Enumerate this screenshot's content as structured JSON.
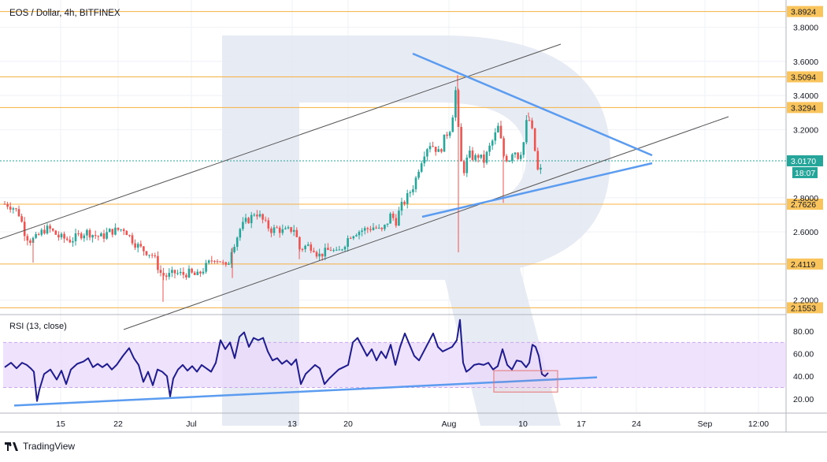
{
  "header": {
    "title": "EOS / Dollar, 4h, BITFINEX"
  },
  "footer": {
    "brand": "TradingView",
    "logo_icon": "tradingview-logo-icon"
  },
  "price_levels": [
    {
      "value": 3.8924,
      "label": "3.8924"
    },
    {
      "value": 3.5094,
      "label": "3.5094"
    },
    {
      "value": 3.3294,
      "label": "3.3294"
    },
    {
      "value": 2.7626,
      "label": "2.7626"
    },
    {
      "value": 2.4119,
      "label": "2.4119"
    },
    {
      "value": 2.1553,
      "label": "2.1553"
    }
  ],
  "current_price": {
    "value": 3.017,
    "label": "3.0170",
    "countdown": "18:07"
  },
  "colors": {
    "level_line": "#f5b041",
    "level_badge": "#f9c45c",
    "candle_up": "#26a69a",
    "candle_down": "#ef5350",
    "trend_blue": "#5b9bf0",
    "channel_line": "#555555",
    "current_badge": "#26a69a",
    "rsi_line": "#1e1b8f",
    "rsi_band": "#e9d8fb",
    "rsi_box": "#e57373",
    "watermark": "#e3e7f1"
  },
  "chart_data": [
    {
      "type": "candlestick",
      "title": "EOS / Dollar, 4h, BITFINEX",
      "xlabels": [
        "15",
        "22",
        "Jul",
        "13",
        "20",
        "Aug",
        "10",
        "17",
        "24",
        "Sep",
        "12:00"
      ],
      "ylabels": [
        "3.8000",
        "3.6000",
        "3.4000",
        "3.2000",
        "2.8000",
        "2.6000",
        "2.2000"
      ],
      "ylim": [
        2.12,
        3.96
      ],
      "price_path": [
        [
          0,
          2.77
        ],
        [
          10,
          2.76
        ],
        [
          18,
          2.74
        ],
        [
          25,
          2.7
        ],
        [
          31,
          2.6
        ],
        [
          37,
          2.55
        ],
        [
          45,
          2.56
        ],
        [
          55,
          2.61
        ],
        [
          62,
          2.62
        ],
        [
          75,
          2.57
        ],
        [
          90,
          2.55
        ],
        [
          100,
          2.58
        ],
        [
          110,
          2.6
        ],
        [
          120,
          2.58
        ],
        [
          130,
          2.57
        ],
        [
          138,
          2.6
        ],
        [
          148,
          2.61
        ],
        [
          158,
          2.62
        ],
        [
          165,
          2.57
        ],
        [
          172,
          2.53
        ],
        [
          180,
          2.5
        ],
        [
          188,
          2.48
        ],
        [
          195,
          2.46
        ],
        [
          200,
          2.4
        ],
        [
          205,
          2.35
        ],
        [
          212,
          2.34
        ],
        [
          222,
          2.36
        ],
        [
          232,
          2.35
        ],
        [
          240,
          2.36
        ],
        [
          250,
          2.34
        ],
        [
          258,
          2.38
        ],
        [
          264,
          2.41
        ],
        [
          272,
          2.45
        ],
        [
          280,
          2.43
        ],
        [
          288,
          2.38
        ],
        [
          294,
          2.5
        ],
        [
          300,
          2.56
        ],
        [
          305,
          2.62
        ],
        [
          312,
          2.66
        ],
        [
          318,
          2.68
        ],
        [
          324,
          2.72
        ],
        [
          330,
          2.69
        ],
        [
          338,
          2.64
        ],
        [
          345,
          2.61
        ],
        [
          352,
          2.62
        ],
        [
          360,
          2.6
        ],
        [
          367,
          2.61
        ],
        [
          374,
          2.62
        ],
        [
          380,
          2.5
        ],
        [
          390,
          2.52
        ],
        [
          398,
          2.51
        ],
        [
          404,
          2.46
        ],
        [
          412,
          2.48
        ],
        [
          420,
          2.5
        ],
        [
          428,
          2.47
        ],
        [
          436,
          2.52
        ],
        [
          444,
          2.58
        ],
        [
          452,
          2.6
        ],
        [
          460,
          2.61
        ],
        [
          468,
          2.62
        ],
        [
          476,
          2.63
        ],
        [
          484,
          2.6
        ],
        [
          490,
          2.64
        ],
        [
          496,
          2.7
        ],
        [
          503,
          2.66
        ],
        [
          508,
          2.74
        ],
        [
          514,
          2.78
        ],
        [
          520,
          2.83
        ],
        [
          526,
          2.88
        ],
        [
          532,
          2.98
        ],
        [
          538,
          3.06
        ],
        [
          545,
          3.12
        ],
        [
          551,
          3.1
        ],
        [
          558,
          3.06
        ],
        [
          565,
          3.16
        ],
        [
          571,
          3.2
        ],
        [
          576,
          3.32
        ],
        [
          580,
          3.5
        ],
        [
          583,
          3.04
        ],
        [
          589,
          2.96
        ],
        [
          595,
          3.06
        ],
        [
          602,
          3.03
        ],
        [
          608,
          3.05
        ],
        [
          614,
          3.01
        ],
        [
          620,
          3.08
        ],
        [
          627,
          3.15
        ],
        [
          633,
          3.22
        ],
        [
          639,
          3.05
        ],
        [
          646,
          3.02
        ],
        [
          652,
          3.09
        ],
        [
          658,
          3.04
        ],
        [
          664,
          3.1
        ],
        [
          670,
          3.29
        ],
        [
          676,
          3.18
        ],
        [
          680,
          3.05
        ],
        [
          684,
          2.92
        ],
        [
          688,
          2.99
        ],
        [
          691,
          3.02
        ]
      ],
      "wicks": [
        {
          "x": 42,
          "low": 2.42
        },
        {
          "x": 207,
          "low": 2.19
        },
        {
          "x": 295,
          "low": 2.33
        },
        {
          "x": 380,
          "low": 2.44
        },
        {
          "x": 582,
          "low": 2.48
        },
        {
          "x": 581,
          "high": 3.52
        },
        {
          "x": 639,
          "low": 2.77
        },
        {
          "x": 671,
          "high": 3.3
        }
      ]
    },
    {
      "type": "line",
      "title": "RSI (13, close)",
      "ylabels": [
        "80.00",
        "60.00",
        "40.00",
        "20.00"
      ],
      "ylim": [
        8,
        94
      ],
      "band": [
        30,
        70
      ],
      "rsi_path": [
        [
          0,
          48
        ],
        [
          8,
          52
        ],
        [
          15,
          47
        ],
        [
          22,
          52
        ],
        [
          28,
          50
        ],
        [
          33,
          47
        ],
        [
          37,
          44
        ],
        [
          41,
          18
        ],
        [
          44,
          28
        ],
        [
          50,
          42
        ],
        [
          58,
          46
        ],
        [
          66,
          37
        ],
        [
          72,
          45
        ],
        [
          78,
          33
        ],
        [
          84,
          46
        ],
        [
          92,
          51
        ],
        [
          100,
          53
        ],
        [
          106,
          56
        ],
        [
          112,
          48
        ],
        [
          118,
          51
        ],
        [
          124,
          48
        ],
        [
          130,
          51
        ],
        [
          136,
          46
        ],
        [
          142,
          50
        ],
        [
          150,
          58
        ],
        [
          158,
          65
        ],
        [
          164,
          56
        ],
        [
          170,
          50
        ],
        [
          176,
          35
        ],
        [
          182,
          44
        ],
        [
          188,
          32
        ],
        [
          194,
          46
        ],
        [
          200,
          44
        ],
        [
          206,
          40
        ],
        [
          210,
          22
        ],
        [
          214,
          38
        ],
        [
          220,
          46
        ],
        [
          226,
          50
        ],
        [
          232,
          45
        ],
        [
          238,
          49
        ],
        [
          244,
          44
        ],
        [
          250,
          50
        ],
        [
          256,
          47
        ],
        [
          262,
          44
        ],
        [
          268,
          52
        ],
        [
          274,
          72
        ],
        [
          280,
          64
        ],
        [
          286,
          70
        ],
        [
          292,
          56
        ],
        [
          298,
          75
        ],
        [
          304,
          79
        ],
        [
          310,
          66
        ],
        [
          316,
          74
        ],
        [
          322,
          72
        ],
        [
          328,
          74
        ],
        [
          334,
          62
        ],
        [
          340,
          54
        ],
        [
          346,
          56
        ],
        [
          352,
          51
        ],
        [
          358,
          54
        ],
        [
          364,
          50
        ],
        [
          370,
          55
        ],
        [
          376,
          33
        ],
        [
          382,
          42
        ],
        [
          388,
          46
        ],
        [
          394,
          50
        ],
        [
          400,
          47
        ],
        [
          406,
          33
        ],
        [
          412,
          38
        ],
        [
          418,
          42
        ],
        [
          424,
          46
        ],
        [
          430,
          48
        ],
        [
          436,
          50
        ],
        [
          442,
          70
        ],
        [
          448,
          74
        ],
        [
          454,
          66
        ],
        [
          460,
          58
        ],
        [
          466,
          64
        ],
        [
          472,
          54
        ],
        [
          478,
          62
        ],
        [
          484,
          56
        ],
        [
          490,
          68
        ],
        [
          496,
          50
        ],
        [
          502,
          66
        ],
        [
          508,
          78
        ],
        [
          514,
          68
        ],
        [
          520,
          58
        ],
        [
          526,
          54
        ],
        [
          532,
          62
        ],
        [
          538,
          70
        ],
        [
          544,
          78
        ],
        [
          550,
          66
        ],
        [
          556,
          62
        ],
        [
          562,
          64
        ],
        [
          568,
          66
        ],
        [
          574,
          72
        ],
        [
          578,
          90
        ],
        [
          582,
          52
        ],
        [
          586,
          44
        ],
        [
          590,
          46
        ],
        [
          596,
          50
        ],
        [
          602,
          51
        ],
        [
          608,
          50
        ],
        [
          614,
          52
        ],
        [
          620,
          46
        ],
        [
          626,
          49
        ],
        [
          632,
          64
        ],
        [
          638,
          50
        ],
        [
          644,
          46
        ],
        [
          650,
          54
        ],
        [
          656,
          53
        ],
        [
          662,
          48
        ],
        [
          666,
          52
        ],
        [
          670,
          68
        ],
        [
          674,
          66
        ],
        [
          678,
          58
        ],
        [
          682,
          42
        ],
        [
          686,
          40
        ],
        [
          690,
          43
        ]
      ],
      "trendline": [
        [
          18,
          14
        ],
        [
          758,
          39
        ]
      ]
    }
  ]
}
